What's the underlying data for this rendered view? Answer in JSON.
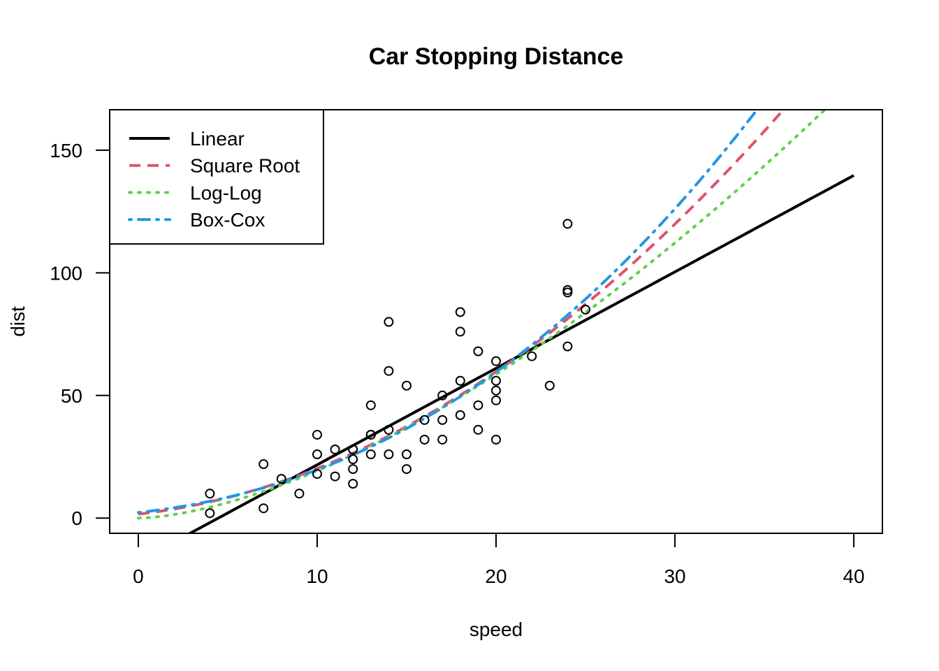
{
  "chart_data": {
    "type": "scatter",
    "title": "Car Stopping Distance",
    "xlabel": "speed",
    "ylabel": "dist",
    "xlim": [
      -1.6,
      41.6
    ],
    "ylim": [
      -6.2,
      166.5
    ],
    "xticks": [
      0,
      10,
      20,
      30,
      40
    ],
    "yticks": [
      0,
      50,
      100,
      150
    ],
    "xtick_labels": [
      "0",
      "10",
      "20",
      "30",
      "40"
    ],
    "ytick_labels": [
      "0",
      "50",
      "100",
      "150"
    ],
    "grid": false,
    "legend_position": "top-left",
    "points": {
      "speed": [
        4,
        4,
        7,
        7,
        8,
        9,
        10,
        10,
        10,
        11,
        11,
        12,
        12,
        12,
        12,
        13,
        13,
        13,
        13,
        14,
        14,
        14,
        14,
        15,
        15,
        15,
        16,
        16,
        17,
        17,
        17,
        18,
        18,
        18,
        18,
        19,
        19,
        19,
        20,
        20,
        20,
        20,
        20,
        22,
        23,
        24,
        24,
        24,
        24,
        25
      ],
      "dist": [
        2,
        10,
        4,
        22,
        16,
        10,
        18,
        26,
        34,
        17,
        28,
        14,
        20,
        24,
        28,
        26,
        34,
        34,
        46,
        26,
        36,
        60,
        80,
        20,
        26,
        54,
        32,
        40,
        32,
        40,
        50,
        42,
        56,
        76,
        84,
        36,
        46,
        68,
        32,
        48,
        52,
        56,
        64,
        66,
        54,
        70,
        92,
        93,
        120,
        85
      ]
    },
    "series": [
      {
        "name": "Linear",
        "color": "#000000",
        "dash": "solid",
        "model": "linear",
        "params": {
          "intercept": -17.579,
          "slope": 3.932
        }
      },
      {
        "name": "Square Root",
        "color": "#DF536B",
        "dash": "dashed",
        "model": "sqrt",
        "params": {
          "intercept": 1.277,
          "slope": 0.3224
        }
      },
      {
        "name": "Log-Log",
        "color": "#61D04F",
        "dash": "dotted",
        "model": "loglog",
        "params": {
          "intercept": -0.7297,
          "slope": 1.6024
        }
      },
      {
        "name": "Box-Cox",
        "color": "#2297E6",
        "dash": "dotdash",
        "model": "boxcox",
        "params": {
          "lambda": 0.4242,
          "intercept": 0.99,
          "slope": 0.5
        }
      }
    ],
    "curve_range": [
      0,
      40
    ]
  }
}
